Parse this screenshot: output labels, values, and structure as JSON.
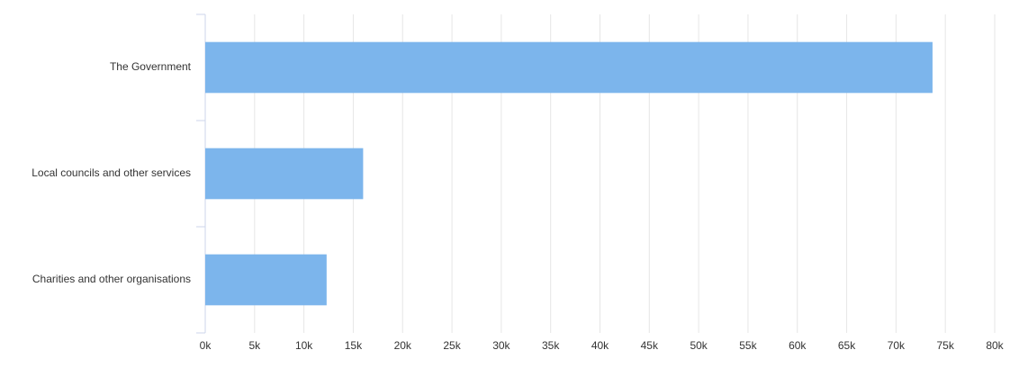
{
  "chart_data": {
    "type": "bar",
    "orientation": "horizontal",
    "categories": [
      "The Government",
      "Local councils and other services",
      "Charities and other organisations"
    ],
    "values": [
      73.7,
      16,
      12.3
    ],
    "color": "#7cb5ec",
    "xlim": [
      0,
      80
    ],
    "xticks": [
      {
        "value": 0,
        "label": "0k"
      },
      {
        "value": 5,
        "label": "5k"
      },
      {
        "value": 10,
        "label": "10k"
      },
      {
        "value": 15,
        "label": "15k"
      },
      {
        "value": 20,
        "label": "20k"
      },
      {
        "value": 25,
        "label": "25k"
      },
      {
        "value": 30,
        "label": "30k"
      },
      {
        "value": 35,
        "label": "35k"
      },
      {
        "value": 40,
        "label": "40k"
      },
      {
        "value": 45,
        "label": "45k"
      },
      {
        "value": 50,
        "label": "50k"
      },
      {
        "value": 55,
        "label": "55k"
      },
      {
        "value": 60,
        "label": "60k"
      },
      {
        "value": 65,
        "label": "65k"
      },
      {
        "value": 70,
        "label": "70k"
      },
      {
        "value": 75,
        "label": "75k"
      },
      {
        "value": 80,
        "label": "80k"
      }
    ],
    "grid": true
  }
}
